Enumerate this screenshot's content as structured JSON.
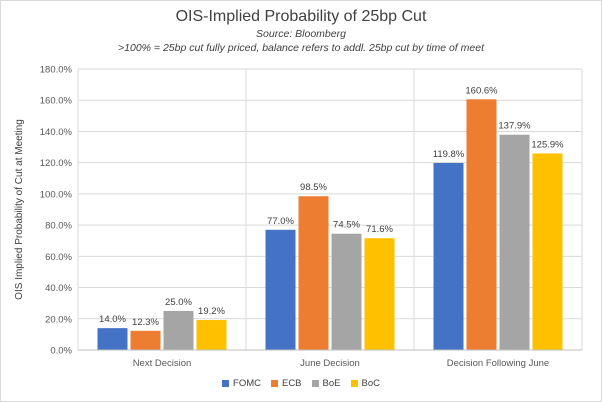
{
  "chart_data": {
    "type": "bar",
    "title": "OIS-Implied Probability of 25bp Cut",
    "subtitle": "Source: Bloomberg",
    "note": ">100% = 25bp cut fully priced, balance refers to addl. 25bp cut by time of meet",
    "ylabel": "OIS Implied Probability of Cut at Meeting",
    "xlabel": "",
    "categories": [
      "Next Decision",
      "June Decision",
      "Decision Following June"
    ],
    "series": [
      {
        "name": "FOMC",
        "color": "#4472C4",
        "values": [
          14.0,
          77.0,
          119.8
        ],
        "labels": [
          "14.0%",
          "77.0%",
          "119.8%"
        ]
      },
      {
        "name": "ECB",
        "color": "#ED7D31",
        "values": [
          12.3,
          98.5,
          160.6
        ],
        "labels": [
          "12.3%",
          "98.5%",
          "160.6%"
        ]
      },
      {
        "name": "BoE",
        "color": "#A5A5A5",
        "values": [
          25.0,
          74.5,
          137.9
        ],
        "labels": [
          "25.0%",
          "74.5%",
          "137.9%"
        ]
      },
      {
        "name": "BoC",
        "color": "#FFC000",
        "values": [
          19.2,
          71.6,
          125.9
        ],
        "labels": [
          "19.2%",
          "71.6%",
          "125.9%"
        ]
      }
    ],
    "ylim": [
      0,
      180
    ],
    "yticks": [
      "0.0%",
      "20.0%",
      "40.0%",
      "60.0%",
      "80.0%",
      "100.0%",
      "120.0%",
      "140.0%",
      "160.0%",
      "180.0%"
    ],
    "ytick_values": [
      0,
      20,
      40,
      60,
      80,
      100,
      120,
      140,
      160,
      180
    ],
    "legend_position": "bottom"
  }
}
